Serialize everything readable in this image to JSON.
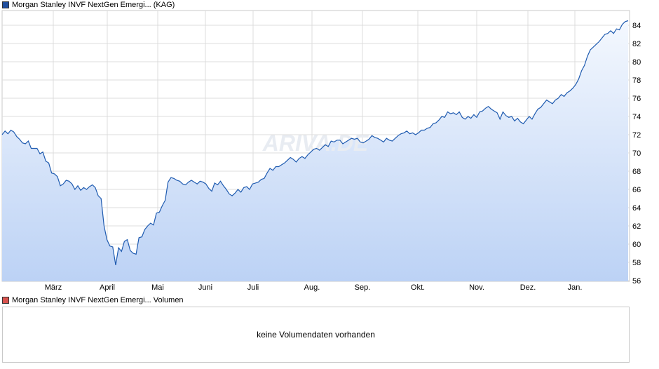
{
  "price_legend": {
    "label": "Morgan Stanley INVF NextGen Emergi... (KAG)",
    "color": "#1f4e9e"
  },
  "volume_legend": {
    "label": "Morgan Stanley INVF NextGen Emergi... Volumen",
    "color": "#d9534f"
  },
  "watermark": "ARIVA.DE",
  "volume_panel": {
    "message": "keine Volumendaten vorhanden"
  },
  "chart_data": {
    "type": "area",
    "title": "",
    "xlabel": "",
    "ylabel": "",
    "ylim": [
      55,
      85
    ],
    "y_ticks": [
      56,
      58,
      60,
      62,
      64,
      66,
      68,
      70,
      72,
      74,
      76,
      78,
      80,
      82,
      84
    ],
    "x_ticks": [
      "März",
      "April",
      "Mai",
      "Juni",
      "Juli",
      "Aug.",
      "Sep.",
      "Okt.",
      "Nov.",
      "Dez.",
      "Jan."
    ],
    "grid": true,
    "line_color": "#1f5bb0",
    "fill_top_color": "#f4f8fe",
    "fill_bottom_color": "#bcd2f5",
    "series": [
      {
        "values": [
          72.0,
          72.4,
          72.1,
          72.5,
          72.3,
          71.8,
          71.5,
          71.1,
          71.0,
          71.3,
          70.5,
          70.5,
          70.5,
          69.9,
          70.1,
          69.1,
          68.9,
          67.8,
          67.7,
          67.4,
          66.4,
          66.6,
          67.0,
          66.9,
          66.6,
          66.0,
          66.4,
          65.9,
          66.2,
          66.0,
          66.3,
          66.5,
          66.2,
          65.3,
          65.0,
          62.0,
          60.5,
          59.8,
          59.7,
          57.7,
          59.6,
          59.2,
          60.3,
          60.5,
          59.3,
          59.0,
          58.9,
          60.7,
          60.8,
          61.6,
          62.0,
          62.3,
          62.1,
          63.4,
          63.5,
          64.2,
          64.8,
          66.8,
          67.3,
          67.2,
          67.0,
          66.9,
          66.6,
          66.5,
          66.8,
          67.0,
          66.8,
          66.6,
          66.9,
          66.8,
          66.6,
          66.1,
          65.8,
          66.7,
          66.5,
          66.9,
          66.4,
          66.0,
          65.5,
          65.3,
          65.6,
          66.0,
          65.7,
          66.2,
          66.3,
          66.0,
          66.6,
          66.7,
          66.8,
          67.1,
          67.2,
          67.8,
          68.3,
          68.1,
          68.5,
          68.5,
          68.7,
          68.9,
          69.2,
          69.5,
          69.3,
          69.0,
          69.4,
          69.6,
          69.4,
          69.8,
          70.1,
          70.4,
          70.5,
          70.3,
          70.6,
          70.9,
          70.7,
          71.3,
          71.2,
          71.4,
          71.4,
          71.0,
          71.2,
          71.4,
          71.6,
          71.5,
          71.6,
          71.2,
          71.1,
          71.3,
          71.5,
          71.9,
          71.7,
          71.6,
          71.4,
          71.2,
          71.6,
          71.4,
          71.3,
          71.6,
          71.9,
          72.1,
          72.2,
          72.4,
          72.1,
          72.2,
          72.0,
          72.2,
          72.5,
          72.5,
          72.7,
          72.8,
          73.2,
          73.3,
          73.6,
          74.0,
          73.9,
          74.5,
          74.3,
          74.4,
          74.2,
          74.5,
          73.9,
          73.7,
          74.0,
          73.8,
          74.2,
          73.9,
          74.5,
          74.6,
          74.9,
          75.1,
          74.8,
          74.6,
          74.4,
          73.7,
          74.5,
          74.1,
          73.9,
          74.0,
          73.5,
          73.8,
          73.4,
          73.2,
          73.6,
          74.0,
          73.7,
          74.3,
          74.8,
          75.0,
          75.4,
          75.8,
          75.6,
          75.4,
          75.8,
          76.0,
          76.4,
          76.2,
          76.6,
          76.8,
          77.1,
          77.5,
          78.1,
          79.0,
          79.6,
          80.6,
          81.3,
          81.6,
          81.9,
          82.2,
          82.6,
          83.0,
          83.1,
          83.4,
          83.1,
          83.6,
          83.5,
          84.1,
          84.4,
          84.5
        ]
      }
    ]
  }
}
